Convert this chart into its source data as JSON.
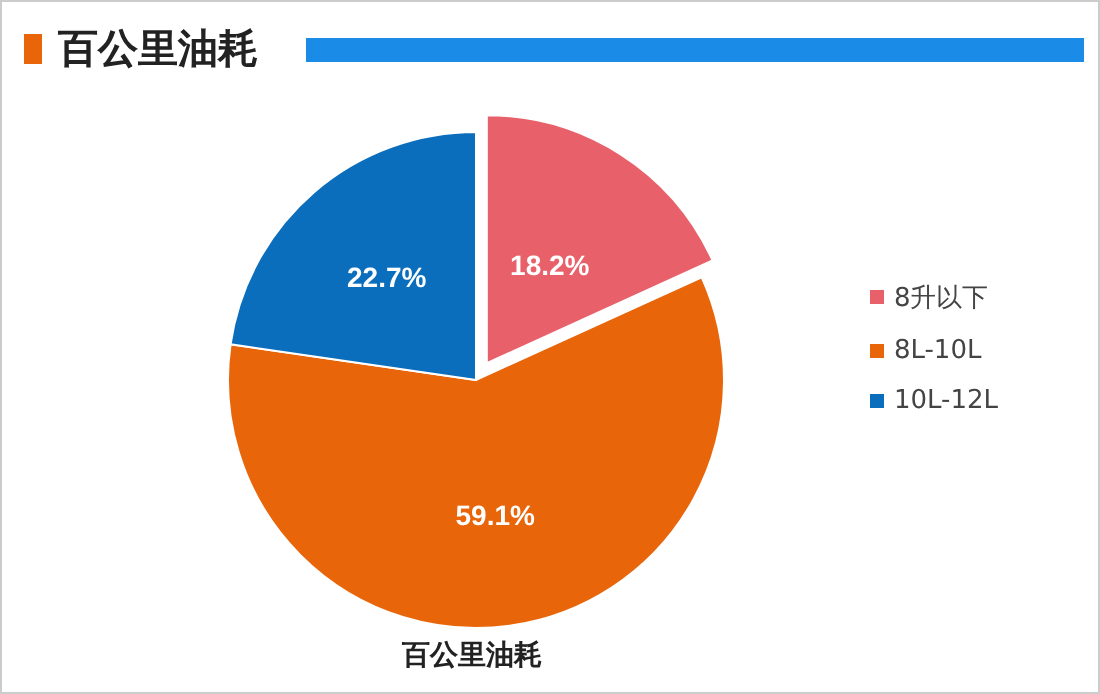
{
  "chart_data": {
    "type": "pie",
    "title": "百公里油耗",
    "categories": [
      "8升以下",
      "8L-10L",
      "10L-12L"
    ],
    "values": [
      18.2,
      59.1,
      22.7
    ],
    "colors": [
      "#e8606a",
      "#e8650a",
      "#0a6ebd"
    ],
    "value_labels": [
      "18.2%",
      "59.1%",
      "22.7%"
    ],
    "legend": "right",
    "annotations": [
      "百公里油耗"
    ]
  }
}
